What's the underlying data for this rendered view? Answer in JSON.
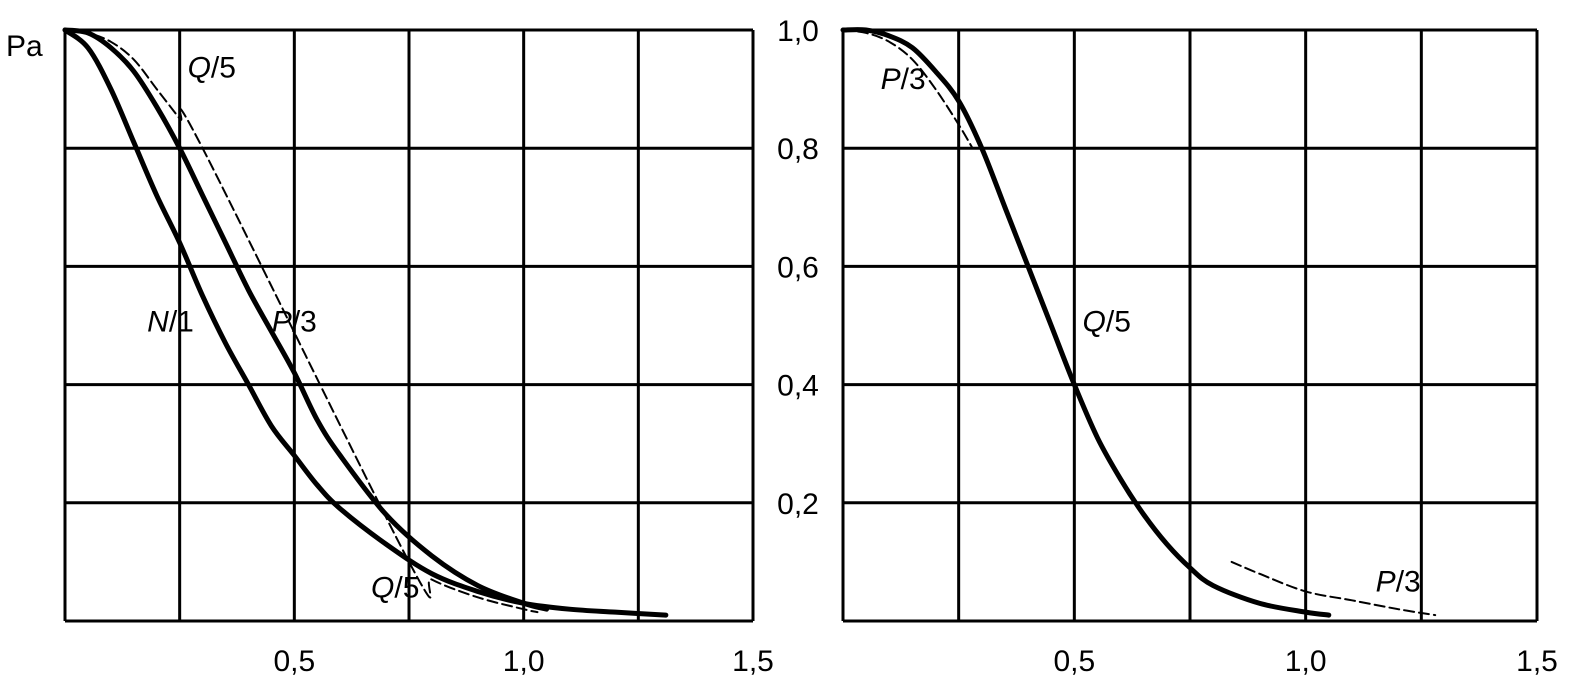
{
  "chart_data": [
    {
      "type": "line",
      "ylabel": "Pa",
      "xlim": [
        0,
        1.5
      ],
      "ylim": [
        0,
        1.0
      ],
      "grid": true,
      "x_ticks": [
        "0,5",
        "1,0",
        "1,5"
      ],
      "y_ticks": [
        "1,0",
        "0,8",
        "0,6",
        "0,4",
        "0,2"
      ],
      "series": [
        {
          "name": "N/1",
          "style": "solid-thick",
          "x": [
            0.0,
            0.05,
            0.1,
            0.15,
            0.2,
            0.25,
            0.3,
            0.35,
            0.4,
            0.45,
            0.5,
            0.55,
            0.6,
            0.7,
            0.8,
            0.9,
            1.0,
            1.1,
            1.2,
            1.31
          ],
          "y": [
            1.0,
            0.97,
            0.9,
            0.81,
            0.72,
            0.64,
            0.55,
            0.47,
            0.4,
            0.33,
            0.28,
            0.23,
            0.19,
            0.13,
            0.08,
            0.05,
            0.03,
            0.02,
            0.015,
            0.01
          ]
        },
        {
          "name": "P/3",
          "style": "solid-thick",
          "x": [
            0.0,
            0.05,
            0.1,
            0.15,
            0.2,
            0.25,
            0.3,
            0.35,
            0.4,
            0.45,
            0.5,
            0.55,
            0.6,
            0.7,
            0.8,
            0.9,
            1.0,
            1.05
          ],
          "y": [
            1.0,
            0.995,
            0.97,
            0.93,
            0.87,
            0.8,
            0.72,
            0.64,
            0.56,
            0.49,
            0.42,
            0.34,
            0.28,
            0.18,
            0.11,
            0.06,
            0.03,
            0.02
          ]
        },
        {
          "name": "Q/5",
          "style": "dashed",
          "x": [
            0.0,
            0.05,
            0.1,
            0.15,
            0.2,
            0.25,
            0.3,
            0.75,
            0.8,
            0.9,
            1.0,
            1.03
          ],
          "y": [
            1.0,
            0.995,
            0.98,
            0.95,
            0.9,
            0.85,
            0.8,
            0.1,
            0.07,
            0.04,
            0.02,
            0.015
          ]
        }
      ],
      "annotations": [
        {
          "text": "Q/5",
          "x": 0.32,
          "y": 0.92
        },
        {
          "text": "N/1",
          "x": 0.23,
          "y": 0.49
        },
        {
          "text": "P/3",
          "x": 0.5,
          "y": 0.49
        },
        {
          "text": "Q/5",
          "x": 0.72,
          "y": 0.04
        }
      ]
    },
    {
      "type": "line",
      "xlim": [
        0,
        1.5
      ],
      "ylim": [
        0,
        1.0
      ],
      "grid": true,
      "x_ticks": [
        "0,5",
        "1,0",
        "1,5"
      ],
      "series": [
        {
          "name": "Q/5",
          "style": "solid-thick",
          "x": [
            0.0,
            0.05,
            0.1,
            0.15,
            0.2,
            0.25,
            0.3,
            0.35,
            0.4,
            0.45,
            0.5,
            0.55,
            0.6,
            0.65,
            0.7,
            0.75,
            0.8,
            0.9,
            1.0,
            1.05
          ],
          "y": [
            1.0,
            1.0,
            0.99,
            0.97,
            0.93,
            0.88,
            0.8,
            0.7,
            0.6,
            0.5,
            0.4,
            0.31,
            0.24,
            0.18,
            0.13,
            0.09,
            0.06,
            0.03,
            0.015,
            0.01
          ]
        },
        {
          "name": "P/3",
          "style": "dashed",
          "x": [
            0.0,
            0.05,
            0.1,
            0.15,
            0.2,
            0.25,
            0.28
          ],
          "y": [
            1.0,
            0.995,
            0.98,
            0.95,
            0.9,
            0.84,
            0.8
          ]
        },
        {
          "name": "P/3",
          "style": "dashed",
          "x": [
            0.84,
            0.9,
            1.0,
            1.1,
            1.2,
            1.28
          ],
          "y": [
            0.1,
            0.08,
            0.05,
            0.035,
            0.02,
            0.01
          ]
        }
      ],
      "annotations": [
        {
          "text": "P/3",
          "x": 0.13,
          "y": 0.9
        },
        {
          "text": "Q/5",
          "x": 0.57,
          "y": 0.49
        },
        {
          "text": "P/3",
          "x": 1.2,
          "y": 0.05
        }
      ]
    }
  ],
  "shared_y_ticks": [
    "1,0",
    "0,8",
    "0,6",
    "0,4",
    "0,2"
  ]
}
